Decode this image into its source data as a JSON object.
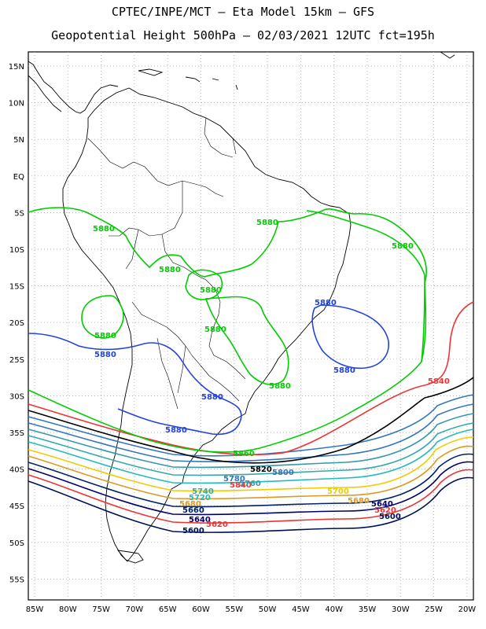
{
  "title": {
    "line1": "CPTEC/INPE/MCT –  Eta Model 15km – GFS",
    "line2": "Geopotential Height 500hPa – 02/03/2021 12UTC fct=195h"
  },
  "axes": {
    "lat_labels": [
      "15N",
      "10N",
      "5N",
      "EQ",
      "5S",
      "10S",
      "15S",
      "20S",
      "25S",
      "30S",
      "35S",
      "40S",
      "45S",
      "50S",
      "55S"
    ],
    "lon_labels": [
      "85W",
      "80W",
      "75W",
      "70W",
      "65W",
      "60W",
      "55W",
      "50W",
      "45W",
      "40W",
      "35W",
      "30W",
      "25W",
      "20W"
    ]
  },
  "contours": [
    {
      "value": "5880",
      "color": "#00cc00"
    },
    {
      "value": "5880",
      "color": "#2244dd"
    },
    {
      "value": "5860",
      "color": "#00cc00"
    },
    {
      "value": "5840",
      "color": "#ee3333"
    },
    {
      "value": "5820",
      "color": "#000000"
    },
    {
      "value": "5800",
      "color": "#3377bb"
    },
    {
      "value": "5780",
      "color": "#3377bb"
    },
    {
      "value": "5760",
      "color": "#3399aa"
    },
    {
      "value": "5740",
      "color": "#33aaaa"
    },
    {
      "value": "5720",
      "color": "#22bbbb"
    },
    {
      "value": "5700",
      "color": "#eecc00"
    },
    {
      "value": "5680",
      "color": "#dd9922"
    },
    {
      "value": "5660",
      "color": "#002266"
    },
    {
      "value": "5640",
      "color": "#000066"
    },
    {
      "value": "5620",
      "color": "#ee3333"
    },
    {
      "value": "5600",
      "color": "#001155"
    }
  ],
  "labels": {
    "g5880_a": "5880",
    "g5880_b": "5880",
    "g5880_c": "5880",
    "g5880_d": "5880",
    "g5880_e": "5880",
    "g5880_f": "5880",
    "g5880_g": "5880",
    "g5880_h": "5880",
    "g5880_i": "5880",
    "b5880_a": "5880",
    "b5880_b": "5880",
    "b5880_c": "5880",
    "b5880_d": "5880",
    "b5880_e": "5880",
    "b5880_f": "5880",
    "g5860_a": "5860",
    "r5840_a": "5840",
    "r5840_b": "5840",
    "k5820": "5820",
    "c5800": "5800",
    "c5780": "5780",
    "c5760": "5760",
    "c5740": "5740",
    "c5720": "5720",
    "y5700": "5700",
    "o5680": "5680",
    "o5680b": "5680",
    "n5660": "5660",
    "n5640": "5640",
    "n5640b": "5640",
    "r5620": "5620",
    "r5620b": "5620",
    "n5600": "5600",
    "n5600b": "5600"
  }
}
